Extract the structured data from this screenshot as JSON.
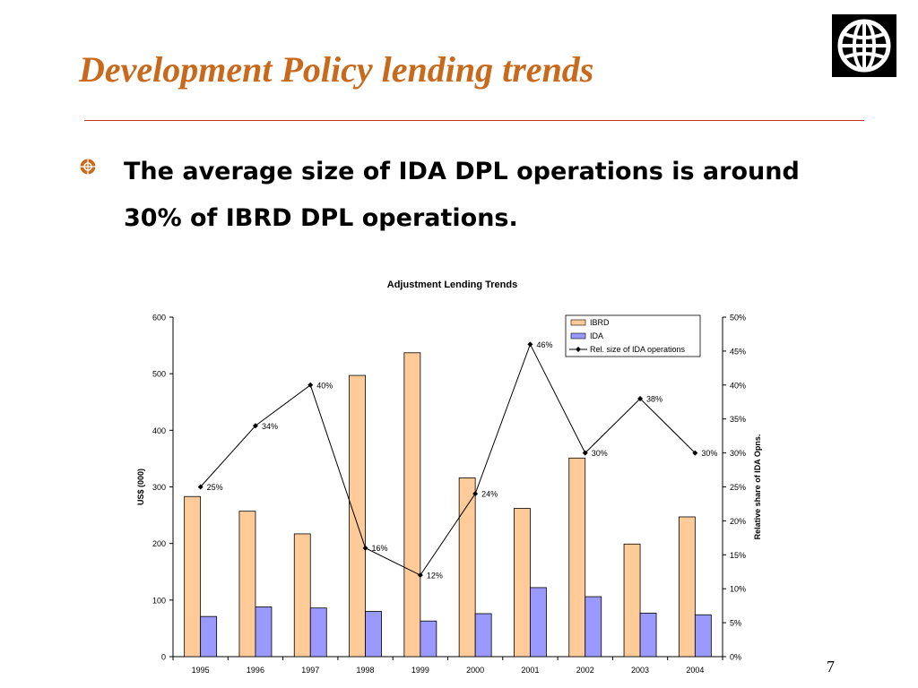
{
  "slide": {
    "title": "Development Policy lending trends",
    "bullet": "The average size of IDA DPL operations is around 30% of IBRD DPL operations.",
    "page_number": "7"
  },
  "logo": {
    "icon": "globe-icon"
  },
  "colors": {
    "title": "#c8691c",
    "rule": "#c0392b",
    "ibrd": "#ffcc99",
    "ida": "#9999ff",
    "line": "#000000"
  },
  "chart_data": {
    "type": "bar",
    "title": "Adjustment Lending Trends",
    "ylabel": "US$ (000)",
    "y2label": "Relative share of IDA Opns.",
    "categories": [
      "1995",
      "1996",
      "1997",
      "1998",
      "1999",
      "2000",
      "2001",
      "2002",
      "2003",
      "2004"
    ],
    "ylim": [
      0,
      600
    ],
    "yticks": [
      0,
      100,
      200,
      300,
      400,
      500,
      600
    ],
    "y2lim": [
      0,
      50
    ],
    "y2ticks": [
      "0%",
      "5%",
      "10%",
      "15%",
      "20%",
      "25%",
      "30%",
      "35%",
      "40%",
      "45%",
      "50%"
    ],
    "legend_position": "top-right",
    "grid": false,
    "series": [
      {
        "name": "IBRD",
        "type": "bar",
        "axis": "left",
        "values": [
          283,
          257,
          217,
          497,
          537,
          316,
          262,
          351,
          199,
          247
        ]
      },
      {
        "name": "IDA",
        "type": "bar",
        "axis": "left",
        "values": [
          71,
          88,
          86,
          80,
          63,
          76,
          122,
          106,
          77,
          74
        ]
      },
      {
        "name": "Rel. size of IDA operations",
        "type": "line",
        "axis": "right",
        "values": [
          25,
          34,
          40,
          16,
          12,
          24,
          46,
          30,
          38,
          30
        ],
        "labels": [
          "25%",
          "34%",
          "40%",
          "16%",
          "12%",
          "24%",
          "46%",
          "30%",
          "38%",
          "30%"
        ]
      }
    ]
  }
}
